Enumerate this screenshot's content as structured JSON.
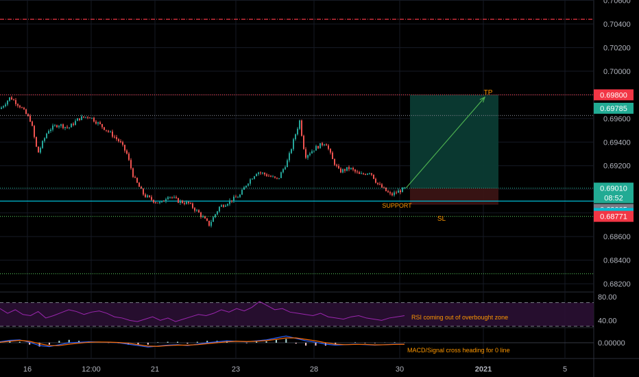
{
  "chart_data": [
    {
      "type": "candlestick",
      "pane": "price",
      "x_tick_labels": [
        "16",
        "12:00",
        "21",
        "23",
        "28",
        "30",
        "2021",
        "5"
      ],
      "y_tick_labels": [
        "0.70600",
        "0.70400",
        "0.70200",
        "0.70000",
        "0.69800",
        "0.69600",
        "0.69400",
        "0.69200",
        "0.69000",
        "0.68800",
        "0.68600",
        "0.68400",
        "0.68200"
      ],
      "ylim": [
        0.6818,
        0.7064
      ],
      "close_path": [
        [
          0,
          0.6968
        ],
        [
          15,
          0.6978
        ],
        [
          30,
          0.697
        ],
        [
          45,
          0.6958
        ],
        [
          55,
          0.693
        ],
        [
          70,
          0.695
        ],
        [
          85,
          0.6955
        ],
        [
          100,
          0.6952
        ],
        [
          115,
          0.696
        ],
        [
          130,
          0.6962
        ],
        [
          145,
          0.6955
        ],
        [
          160,
          0.6948
        ],
        [
          175,
          0.694
        ],
        [
          185,
          0.693
        ],
        [
          195,
          0.691
        ],
        [
          210,
          0.6895
        ],
        [
          225,
          0.689
        ],
        [
          235,
          0.6888
        ],
        [
          245,
          0.6895
        ],
        [
          260,
          0.689
        ],
        [
          275,
          0.6888
        ],
        [
          290,
          0.688
        ],
        [
          305,
          0.687
        ],
        [
          320,
          0.6885
        ],
        [
          335,
          0.689
        ],
        [
          350,
          0.6895
        ],
        [
          360,
          0.6905
        ],
        [
          375,
          0.6915
        ],
        [
          390,
          0.6912
        ],
        [
          405,
          0.6908
        ],
        [
          420,
          0.6925
        ],
        [
          430,
          0.6945
        ],
        [
          437,
          0.6958
        ],
        [
          445,
          0.6928
        ],
        [
          460,
          0.6935
        ],
        [
          475,
          0.694
        ],
        [
          485,
          0.6925
        ],
        [
          495,
          0.6915
        ],
        [
          510,
          0.6918
        ],
        [
          525,
          0.6912
        ],
        [
          540,
          0.6915
        ],
        [
          550,
          0.6905
        ],
        [
          560,
          0.69
        ],
        [
          570,
          0.6895
        ],
        [
          580,
          0.6898
        ],
        [
          592,
          0.6901
        ]
      ],
      "current_price": "0.69010",
      "countdown": "08:52",
      "price_labels": [
        {
          "value": "0.69800",
          "color": "#f23645"
        },
        {
          "value": "0.69785",
          "color": "#22ab94"
        },
        {
          "value": "0.69010",
          "color": "#22ab94"
        },
        {
          "value": "0.69005",
          "color": "#787b86"
        },
        {
          "value": "0.68900",
          "color": "#00bcd4"
        },
        {
          "value": "0.68771",
          "color": "#f23645"
        }
      ],
      "horizontal_lines": [
        {
          "price": 0.7044,
          "color": "#f23645",
          "style": "dash-dot"
        },
        {
          "price": 0.698,
          "color": "#f23645",
          "style": "dotted"
        },
        {
          "price": 0.69625,
          "color": "#787b86",
          "style": "dotted"
        },
        {
          "price": 0.6901,
          "color": "#22ab94",
          "style": "dotted"
        },
        {
          "price": 0.689,
          "color": "#00bcd4",
          "style": "solid"
        },
        {
          "price": 0.68771,
          "color": "#4caf50",
          "style": "dotted"
        },
        {
          "price": 0.68285,
          "color": "#4caf50",
          "style": "dotted"
        }
      ],
      "position": {
        "entry": 0.6901,
        "target": 0.698,
        "stop": 0.6887,
        "profit_color": "#0b3b33",
        "loss_color": "#3a1414"
      },
      "annotations": {
        "tp": "TP",
        "sl": "SL",
        "support": "SUPPORT"
      }
    },
    {
      "type": "line",
      "pane": "rsi",
      "y_tick_labels": [
        "80.00",
        "40.00"
      ],
      "ylim": [
        30,
        90
      ],
      "bands": [
        70,
        30
      ],
      "series": [
        {
          "color": "#9c27b0",
          "values": [
            60,
            52,
            58,
            50,
            48,
            55,
            44,
            48,
            53,
            58,
            55,
            50,
            54,
            56,
            52,
            46,
            44,
            40,
            38,
            42,
            46,
            40,
            44,
            38,
            42,
            46,
            50,
            48,
            52,
            58,
            54,
            60,
            56,
            62,
            72,
            65,
            58,
            60,
            54,
            52,
            50,
            48,
            52,
            46,
            44,
            42,
            46,
            48,
            44,
            42,
            40,
            44,
            46,
            48
          ]
        }
      ],
      "annotation": "RSI coming out of overbought zone"
    },
    {
      "type": "line",
      "pane": "macd",
      "y_tick_labels": [
        "0.00000"
      ],
      "series": [
        {
          "color": "#2962ff",
          "values": [
            0.2,
            0.5,
            0.6,
            0.1,
            -0.6,
            -0.8,
            -0.4,
            0.0,
            0.1,
            0.2,
            0.15,
            0.1,
            0.0,
            -0.3,
            -0.6,
            -0.9,
            -0.7,
            -0.5,
            -0.4,
            -0.6,
            -0.3,
            0.0,
            0.2,
            0.4,
            0.3,
            0.2,
            0.4,
            0.6,
            1.0,
            1.4,
            0.9,
            0.4,
            0.1,
            -0.3,
            -0.5,
            -0.4,
            -0.3,
            -0.4,
            -0.5,
            -0.4,
            -0.3,
            -0.3
          ]
        },
        {
          "color": "#ff6d00",
          "values": [
            0.1,
            0.3,
            0.5,
            0.3,
            -0.2,
            -0.6,
            -0.6,
            -0.3,
            -0.1,
            0.1,
            0.15,
            0.12,
            0.05,
            -0.1,
            -0.4,
            -0.7,
            -0.75,
            -0.6,
            -0.5,
            -0.5,
            -0.4,
            -0.2,
            0.0,
            0.2,
            0.3,
            0.25,
            0.3,
            0.45,
            0.7,
            1.0,
            1.0,
            0.7,
            0.4,
            0.0,
            -0.3,
            -0.4,
            -0.35,
            -0.35,
            -0.45,
            -0.42,
            -0.35,
            -0.32
          ]
        }
      ],
      "annotation": "MACD/Signal cross heading for 0 line"
    }
  ]
}
